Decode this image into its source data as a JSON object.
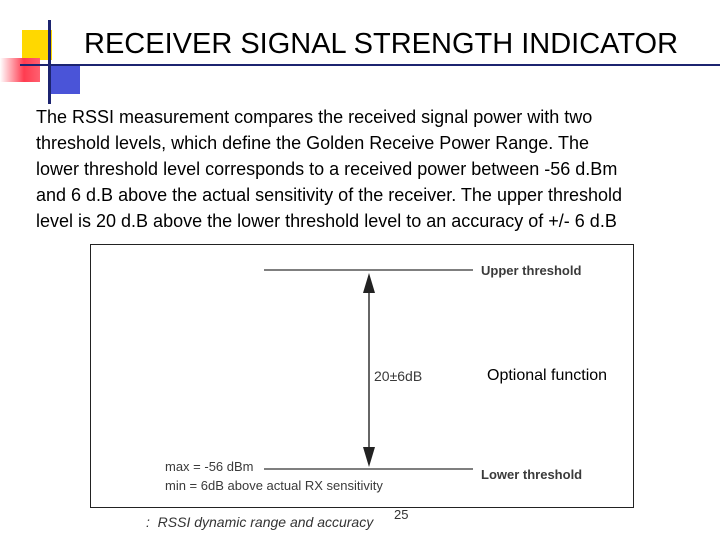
{
  "slide": {
    "title": "RECEIVER SIGNAL STRENGTH INDICATOR",
    "body_lines": [
      "The RSSI measurement compares the received signal power with two",
      "threshold levels, which define the Golden Receive Power Range. The",
      "lower threshold level corresponds to a received power between -56 d.Bm",
      "and 6 d.B above the actual sensitivity of the receiver. The upper threshold",
      "level is 20 d.B above the lower threshold level to an accuracy of +/- 6 d.B"
    ]
  },
  "figure": {
    "upper_threshold_label": "Upper threshold",
    "lower_threshold_label": "Lower threshold",
    "range_label": "20±6dB",
    "max_label": "max = -56 dBm",
    "min_label": "min = 6dB above actual RX sensitivity",
    "caption_prefix": ":",
    "caption": "RSSI dynamic range and accuracy"
  },
  "overlay": {
    "optional_function": "Optional function"
  },
  "page_number": "25",
  "colors": {
    "accent_yellow": "#ffd800",
    "accent_red": "#ff3c50",
    "accent_blue": "#4a54d8",
    "rule_navy": "#1c2470"
  }
}
